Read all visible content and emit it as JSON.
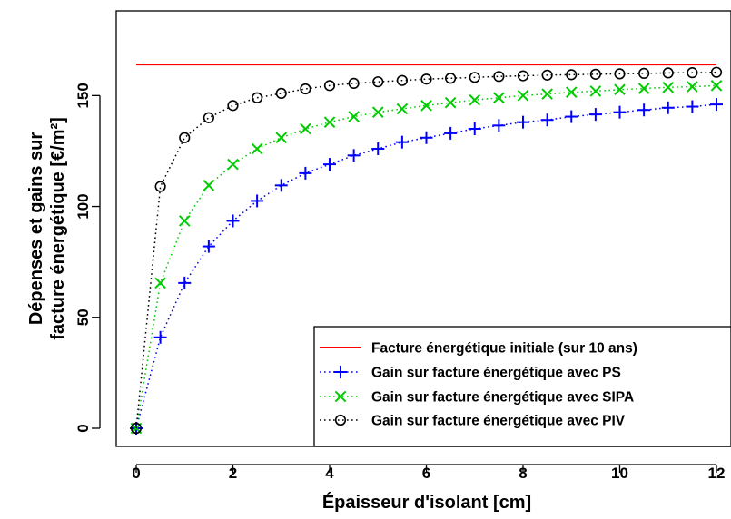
{
  "chart_data": {
    "type": "scatter",
    "title": "",
    "xlabel": "Épaisseur d'isolant [cm]",
    "ylabel_lines": [
      "Dépenses et gains sur",
      "facture énergétique [€/m²]"
    ],
    "xlim": [
      0,
      12
    ],
    "ylim": [
      0,
      180
    ],
    "x_ticks": [
      0,
      2,
      4,
      6,
      8,
      10,
      12
    ],
    "y_ticks": [
      0,
      50,
      100,
      150
    ],
    "grid": false,
    "legend_position": "bottom-right",
    "x": [
      0,
      0.5,
      1,
      1.5,
      2,
      2.5,
      3,
      3.5,
      4,
      4.5,
      5,
      5.5,
      6,
      6.5,
      7,
      7.5,
      8,
      8.5,
      9,
      9.5,
      10,
      10.5,
      11,
      11.5,
      12
    ],
    "series": [
      {
        "name": "Facture énergétique initiale (sur 10 ans)",
        "style": "line",
        "color": "#ff0000",
        "x": [
          0,
          12
        ],
        "values": [
          164,
          164
        ]
      },
      {
        "name": "Gain sur facture énergétique avec PS",
        "style": "dotted-marker",
        "marker": "plus",
        "color": "#0000ff",
        "values": [
          0,
          41,
          65.5,
          82,
          93.5,
          102.5,
          109.5,
          115,
          119,
          123,
          126,
          129,
          131,
          133,
          135,
          136.5,
          138,
          139,
          140.5,
          141.5,
          142.5,
          143.5,
          144.5,
          145,
          146
        ]
      },
      {
        "name": "Gain sur facture énergétique avec SIPA",
        "style": "dotted-marker",
        "marker": "cross",
        "color": "#00cc00",
        "values": [
          0,
          65.5,
          93.5,
          109.5,
          119,
          126,
          131,
          135,
          138,
          140.5,
          142.5,
          144,
          145.5,
          146.8,
          148,
          149,
          150,
          150.7,
          151.5,
          152,
          152.7,
          153.2,
          153.7,
          154,
          154.5
        ]
      },
      {
        "name": "Gain sur facture énergétique avec PIV",
        "style": "dotted-marker",
        "marker": "circle",
        "color": "#000000",
        "values": [
          0,
          109,
          131,
          140,
          145.5,
          149,
          151,
          153,
          154.5,
          155.5,
          156.2,
          156.8,
          157.4,
          157.8,
          158.2,
          158.6,
          158.9,
          159.2,
          159.4,
          159.6,
          159.8,
          160,
          160.2,
          160.3,
          160.5
        ]
      }
    ]
  }
}
